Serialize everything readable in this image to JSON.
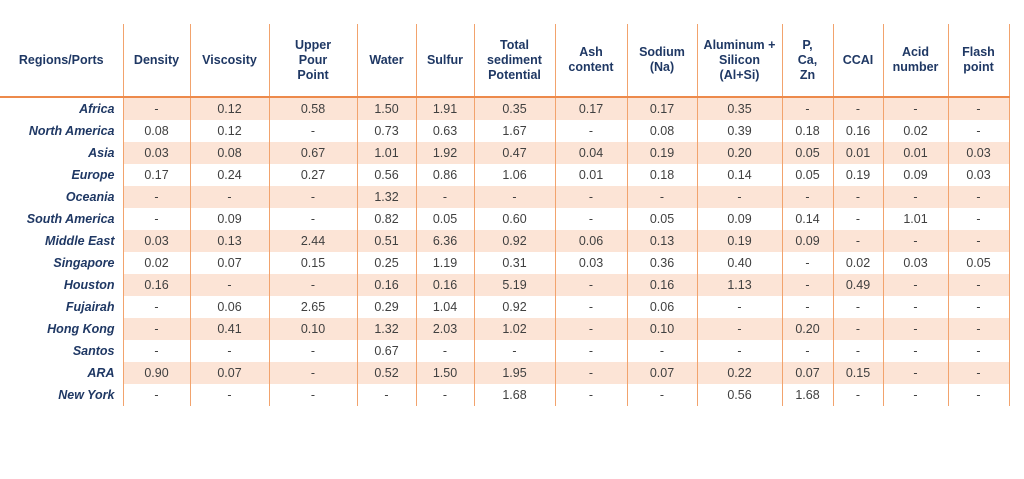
{
  "colors": {
    "header_text": "#1F3864",
    "region_text": "#1F3864",
    "value_text": "#404040",
    "grid_line": "#F2A36D",
    "header_rule": "#ED8A4B",
    "stripe_fill": "#FCE4D6",
    "page_bg": "#FFFFFF"
  },
  "table": {
    "header": [
      "Regions/Ports",
      "Density",
      "Viscosity",
      "Upper Pour Point",
      "Water",
      "Sulfur",
      "Total sediment Potential",
      "Ash content",
      "Sodium (Na)",
      "Aluminum + Silicon (Al+Si)",
      "P, Ca, Zn",
      "CCAI",
      "Acid number",
      "Flash point"
    ],
    "rows": [
      {
        "region": "Africa",
        "values": [
          "-",
          "0.12",
          "0.58",
          "1.50",
          "1.91",
          "0.35",
          "0.17",
          "0.17",
          "0.35",
          "-",
          "-",
          "-",
          "-"
        ]
      },
      {
        "region": "North America",
        "values": [
          "0.08",
          "0.12",
          "-",
          "0.73",
          "0.63",
          "1.67",
          "-",
          "0.08",
          "0.39",
          "0.18",
          "0.16",
          "0.02",
          "-"
        ]
      },
      {
        "region": "Asia",
        "values": [
          "0.03",
          "0.08",
          "0.67",
          "1.01",
          "1.92",
          "0.47",
          "0.04",
          "0.19",
          "0.20",
          "0.05",
          "0.01",
          "0.01",
          "0.03"
        ]
      },
      {
        "region": "Europe",
        "values": [
          "0.17",
          "0.24",
          "0.27",
          "0.56",
          "0.86",
          "1.06",
          "0.01",
          "0.18",
          "0.14",
          "0.05",
          "0.19",
          "0.09",
          "0.03"
        ]
      },
      {
        "region": "Oceania",
        "values": [
          "-",
          "-",
          "-",
          "1.32",
          "-",
          "-",
          "-",
          "-",
          "-",
          "-",
          "-",
          "-",
          "-"
        ]
      },
      {
        "region": "South America",
        "values": [
          "-",
          "0.09",
          "-",
          "0.82",
          "0.05",
          "0.60",
          "-",
          "0.05",
          "0.09",
          "0.14",
          "-",
          "1.01",
          "-"
        ]
      },
      {
        "region": "Middle East",
        "values": [
          "0.03",
          "0.13",
          "2.44",
          "0.51",
          "6.36",
          "0.92",
          "0.06",
          "0.13",
          "0.19",
          "0.09",
          "-",
          "-",
          "-"
        ]
      },
      {
        "region": "Singapore",
        "values": [
          "0.02",
          "0.07",
          "0.15",
          "0.25",
          "1.19",
          "0.31",
          "0.03",
          "0.36",
          "0.40",
          "-",
          "0.02",
          "0.03",
          "0.05"
        ]
      },
      {
        "region": "Houston",
        "values": [
          "0.16",
          "-",
          "-",
          "0.16",
          "0.16",
          "5.19",
          "-",
          "0.16",
          "1.13",
          "-",
          "0.49",
          "-",
          "-"
        ]
      },
      {
        "region": "Fujairah",
        "values": [
          "-",
          "0.06",
          "2.65",
          "0.29",
          "1.04",
          "0.92",
          "-",
          "0.06",
          "-",
          "-",
          "-",
          "-",
          "-"
        ]
      },
      {
        "region": "Hong Kong",
        "values": [
          "-",
          "0.41",
          "0.10",
          "1.32",
          "2.03",
          "1.02",
          "-",
          "0.10",
          "-",
          "0.20",
          "-",
          "-",
          "-"
        ]
      },
      {
        "region": "Santos",
        "values": [
          "-",
          "-",
          "-",
          "0.67",
          "-",
          "-",
          "-",
          "-",
          "-",
          "-",
          "-",
          "-",
          "-"
        ]
      },
      {
        "region": "ARA",
        "values": [
          "0.90",
          "0.07",
          "-",
          "0.52",
          "1.50",
          "1.95",
          "-",
          "0.07",
          "0.22",
          "0.07",
          "0.15",
          "-",
          "-"
        ]
      },
      {
        "region": "New York",
        "values": [
          "-",
          "-",
          "-",
          "-",
          "-",
          "1.68",
          "-",
          "-",
          "0.56",
          "1.68",
          "-",
          "-",
          "-"
        ]
      }
    ]
  }
}
